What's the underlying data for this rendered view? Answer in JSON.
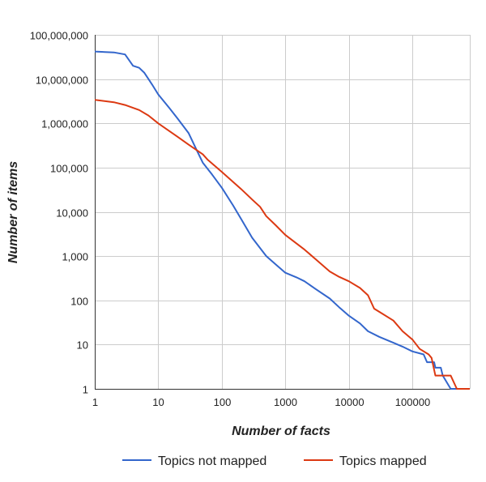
{
  "chart_data": {
    "type": "line",
    "xlabel": "Number of facts",
    "ylabel": "Number of items",
    "x_scale": "log",
    "y_scale": "log",
    "xlim": [
      1,
      800000
    ],
    "ylim": [
      1,
      100000000
    ],
    "x_ticks": [
      {
        "value": 1,
        "label": "1"
      },
      {
        "value": 10,
        "label": "10"
      },
      {
        "value": 100,
        "label": "100"
      },
      {
        "value": 1000,
        "label": "1000"
      },
      {
        "value": 10000,
        "label": "10000"
      },
      {
        "value": 100000,
        "label": "100000"
      }
    ],
    "y_ticks": [
      {
        "value": 1,
        "label": "1"
      },
      {
        "value": 10,
        "label": "10"
      },
      {
        "value": 100,
        "label": "100"
      },
      {
        "value": 1000,
        "label": "1,000"
      },
      {
        "value": 10000,
        "label": "10,000"
      },
      {
        "value": 100000,
        "label": "100,000"
      },
      {
        "value": 1000000,
        "label": "1,000,000"
      },
      {
        "value": 10000000,
        "label": "10,000,000"
      },
      {
        "value": 100000000,
        "label": "100,000,000"
      }
    ],
    "grid": true,
    "legend_position": "bottom",
    "series": [
      {
        "name": "Topics not mapped",
        "color": "#3366cc",
        "points": [
          [
            1,
            42000000
          ],
          [
            2,
            40000000
          ],
          [
            3,
            36000000
          ],
          [
            4,
            20000000
          ],
          [
            5,
            18000000
          ],
          [
            6,
            14000000
          ],
          [
            7,
            10000000
          ],
          [
            8,
            7500000
          ],
          [
            10,
            4500000
          ],
          [
            15,
            2200000
          ],
          [
            20,
            1300000
          ],
          [
            30,
            600000
          ],
          [
            40,
            250000
          ],
          [
            50,
            130000
          ],
          [
            70,
            70000
          ],
          [
            100,
            35000
          ],
          [
            150,
            14000
          ],
          [
            200,
            7000
          ],
          [
            300,
            2600
          ],
          [
            500,
            1000
          ],
          [
            700,
            650
          ],
          [
            1000,
            420
          ],
          [
            1500,
            330
          ],
          [
            2000,
            270
          ],
          [
            3000,
            180
          ],
          [
            5000,
            110
          ],
          [
            7000,
            70
          ],
          [
            10000,
            45
          ],
          [
            15000,
            30
          ],
          [
            20000,
            20
          ],
          [
            30000,
            15
          ],
          [
            50000,
            11
          ],
          [
            70000,
            9
          ],
          [
            100000,
            7
          ],
          [
            150000,
            6
          ],
          [
            170000,
            4
          ],
          [
            220000,
            4
          ],
          [
            230000,
            3
          ],
          [
            280000,
            3
          ],
          [
            300000,
            2
          ],
          [
            400000,
            1
          ],
          [
            800000,
            1
          ]
        ]
      },
      {
        "name": "Topics mapped",
        "color": "#dc3912",
        "points": [
          [
            1,
            3400000
          ],
          [
            2,
            3000000
          ],
          [
            3,
            2600000
          ],
          [
            5,
            2000000
          ],
          [
            7,
            1500000
          ],
          [
            10,
            1000000
          ],
          [
            20,
            500000
          ],
          [
            30,
            330000
          ],
          [
            50,
            200000
          ],
          [
            60,
            150000
          ],
          [
            100,
            80000
          ],
          [
            200,
            33000
          ],
          [
            300,
            19000
          ],
          [
            400,
            13000
          ],
          [
            500,
            8000
          ],
          [
            700,
            5000
          ],
          [
            1000,
            3000
          ],
          [
            2000,
            1400
          ],
          [
            3000,
            850
          ],
          [
            5000,
            450
          ],
          [
            7000,
            340
          ],
          [
            10000,
            270
          ],
          [
            15000,
            190
          ],
          [
            20000,
            130
          ],
          [
            25000,
            65
          ],
          [
            30000,
            55
          ],
          [
            50000,
            35
          ],
          [
            70000,
            20
          ],
          [
            100000,
            13
          ],
          [
            130000,
            8
          ],
          [
            180000,
            6
          ],
          [
            200000,
            5
          ],
          [
            230000,
            2
          ],
          [
            350000,
            2
          ],
          [
            400000,
            2
          ],
          [
            500000,
            1
          ],
          [
            800000,
            1
          ]
        ]
      }
    ]
  }
}
